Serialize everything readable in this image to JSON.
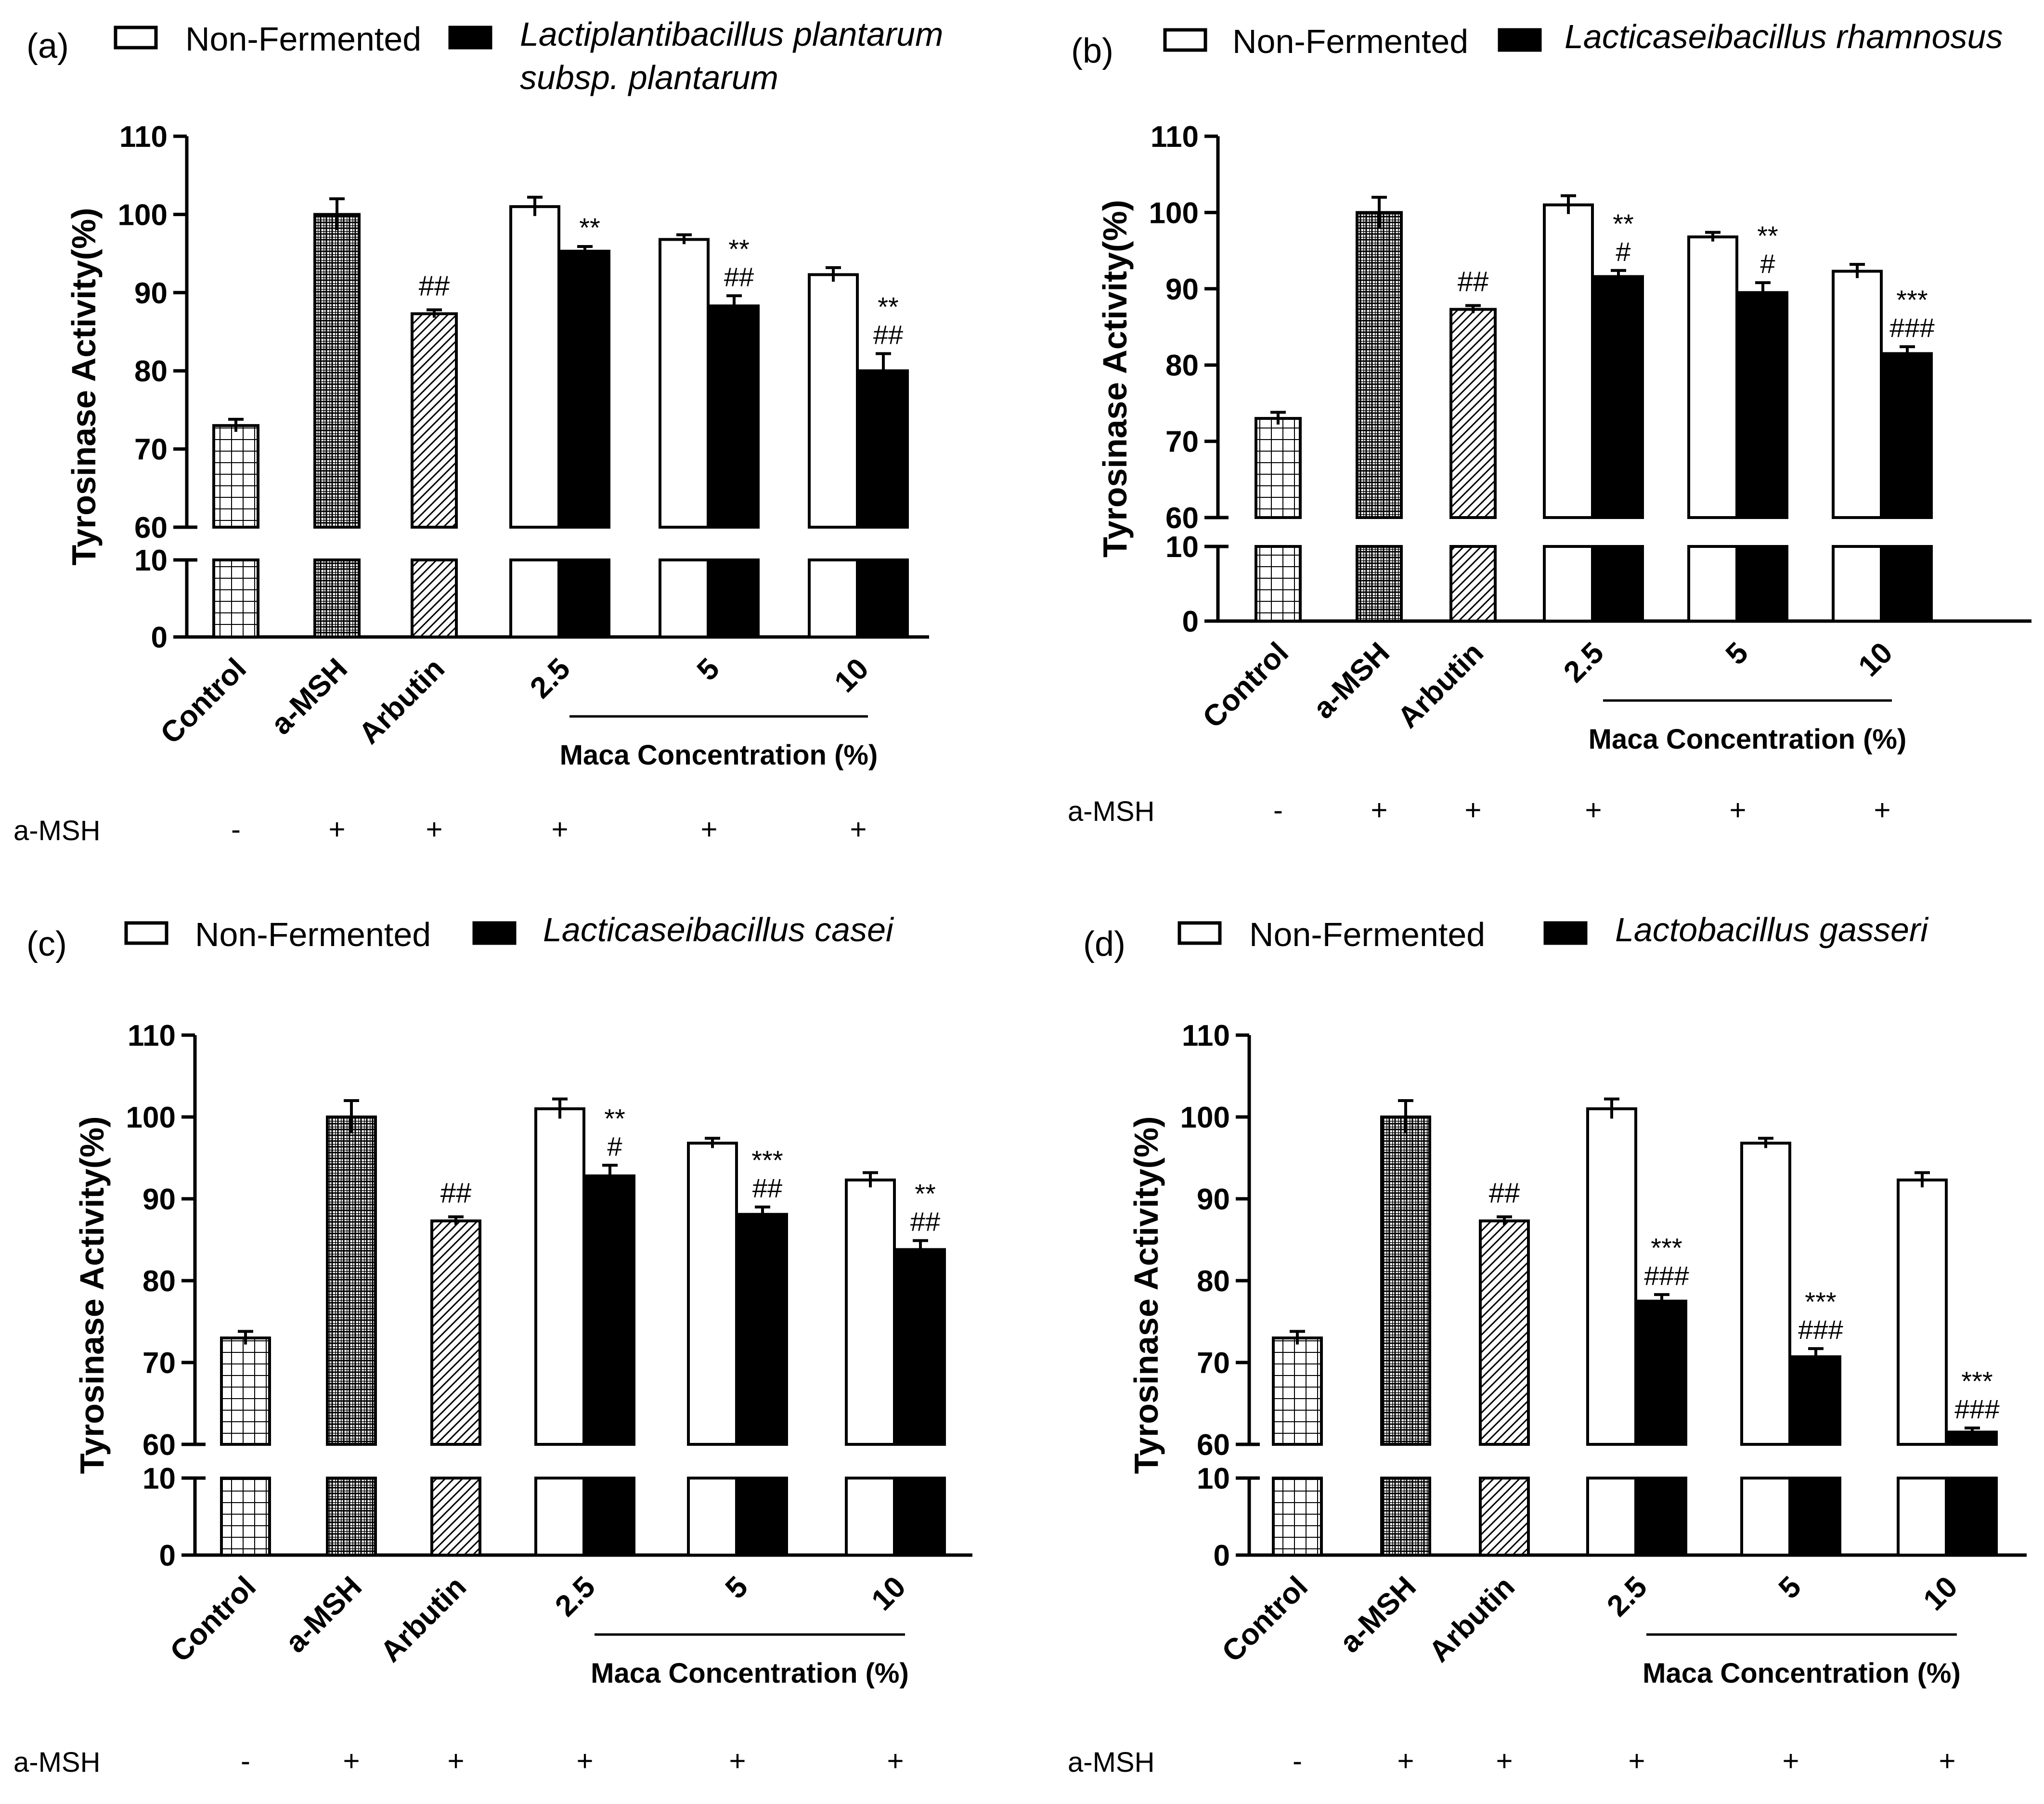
{
  "colors": {
    "ink": "#000000",
    "background": "#ffffff",
    "nonfermented_fill": "#ffffff",
    "fermented_fill": "#000000"
  },
  "shared": {
    "legend_nonfermented": "Non-Fermented",
    "ylabel": "Tyrosinase Activity(%)",
    "xgroup_label": "Maca Concentration (%)",
    "msh_row_label": "a-MSH",
    "categories": [
      "Control",
      "a-MSH",
      "Arbutin",
      "2.5",
      "5",
      "10"
    ],
    "msh_signs": [
      "-",
      "+",
      "+",
      "+",
      "+",
      "+"
    ],
    "upper_ticks": [
      "60",
      "70",
      "80",
      "90",
      "100",
      "110"
    ],
    "lower_ticks": [
      "0",
      "10"
    ]
  },
  "chart_data": [
    {
      "type": "bar",
      "panel": "(a)",
      "legend_fermented": [
        "Lactiplantibacillus plantarum",
        "subsp. plantarum"
      ],
      "ylim_broken": [
        [
          0,
          10
        ],
        [
          60,
          110
        ]
      ],
      "controls": [
        {
          "name": "Control",
          "value": 73,
          "err": 0.8,
          "pattern": "grid"
        },
        {
          "name": "a-MSH",
          "value": 100,
          "err": 2.0,
          "pattern": "dense"
        },
        {
          "name": "Arbutin",
          "value": 87.3,
          "err": 0.5,
          "pattern": "diagonal",
          "annotation": "##"
        }
      ],
      "x": [
        "2.5",
        "5",
        "10"
      ],
      "series": [
        {
          "name": "Non-Fermented",
          "values": [
            101,
            96.8,
            92.3
          ],
          "errors": [
            1.2,
            0.6,
            0.9
          ]
        },
        {
          "name": "Lactiplantibacillus plantarum subsp. plantarum",
          "values": [
            95.3,
            88.3,
            80.0
          ],
          "errors": [
            0.6,
            1.3,
            2.2
          ],
          "annotations": [
            [
              "**"
            ],
            [
              "**",
              "##"
            ],
            [
              "**",
              "##"
            ]
          ]
        }
      ]
    },
    {
      "type": "bar",
      "panel": "(b)",
      "legend_fermented": [
        "Lacticaseibacillus rhamnosus"
      ],
      "ylim_broken": [
        [
          0,
          10
        ],
        [
          60,
          110
        ]
      ],
      "controls": [
        {
          "name": "Control",
          "value": 73,
          "err": 0.8,
          "pattern": "grid"
        },
        {
          "name": "a-MSH",
          "value": 100,
          "err": 2.0,
          "pattern": "dense"
        },
        {
          "name": "Arbutin",
          "value": 87.3,
          "err": 0.5,
          "pattern": "diagonal",
          "annotation": "##"
        }
      ],
      "x": [
        "2.5",
        "5",
        "10"
      ],
      "series": [
        {
          "name": "Non-Fermented",
          "values": [
            101,
            96.8,
            92.3
          ],
          "errors": [
            1.2,
            0.6,
            0.9
          ]
        },
        {
          "name": "Lacticaseibacillus rhamnosus",
          "values": [
            91.6,
            89.5,
            81.5
          ],
          "errors": [
            0.8,
            1.3,
            0.9
          ],
          "annotations": [
            [
              "**",
              "#"
            ],
            [
              "**",
              "#"
            ],
            [
              "***",
              "###"
            ]
          ]
        }
      ]
    },
    {
      "type": "bar",
      "panel": "(c)",
      "legend_fermented": [
        "Lacticaseibacillus casei"
      ],
      "ylim_broken": [
        [
          0,
          10
        ],
        [
          60,
          110
        ]
      ],
      "controls": [
        {
          "name": "Control",
          "value": 73,
          "err": 0.8,
          "pattern": "grid"
        },
        {
          "name": "a-MSH",
          "value": 100,
          "err": 2.0,
          "pattern": "dense"
        },
        {
          "name": "Arbutin",
          "value": 87.3,
          "err": 0.5,
          "pattern": "diagonal",
          "annotation": "##"
        }
      ],
      "x": [
        "2.5",
        "5",
        "10"
      ],
      "series": [
        {
          "name": "Non-Fermented",
          "values": [
            101,
            96.8,
            92.3
          ],
          "errors": [
            1.2,
            0.6,
            0.9
          ]
        },
        {
          "name": "Lacticaseibacillus casei",
          "values": [
            92.8,
            88.1,
            83.8
          ],
          "errors": [
            1.3,
            0.9,
            1.1
          ],
          "annotations": [
            [
              "**",
              "#"
            ],
            [
              "***",
              "##"
            ],
            [
              "**",
              "##"
            ]
          ]
        }
      ]
    },
    {
      "type": "bar",
      "panel": "(d)",
      "legend_fermented": [
        "Lactobacillus gasseri"
      ],
      "ylim_broken": [
        [
          0,
          10
        ],
        [
          60,
          110
        ]
      ],
      "controls": [
        {
          "name": "Control",
          "value": 73,
          "err": 0.8,
          "pattern": "grid"
        },
        {
          "name": "a-MSH",
          "value": 100,
          "err": 2.0,
          "pattern": "dense"
        },
        {
          "name": "Arbutin",
          "value": 87.3,
          "err": 0.5,
          "pattern": "diagonal",
          "annotation": "##"
        }
      ],
      "x": [
        "2.5",
        "5",
        "10"
      ],
      "series": [
        {
          "name": "Non-Fermented",
          "values": [
            101,
            96.8,
            92.3
          ],
          "errors": [
            1.2,
            0.6,
            0.9
          ]
        },
        {
          "name": "Lactobacillus gasseri",
          "values": [
            77.5,
            70.7,
            61.5
          ],
          "errors": [
            0.8,
            1.0,
            0.5
          ],
          "annotations": [
            [
              "***",
              "###"
            ],
            [
              "***",
              "###"
            ],
            [
              "***",
              "###"
            ]
          ]
        }
      ]
    }
  ]
}
